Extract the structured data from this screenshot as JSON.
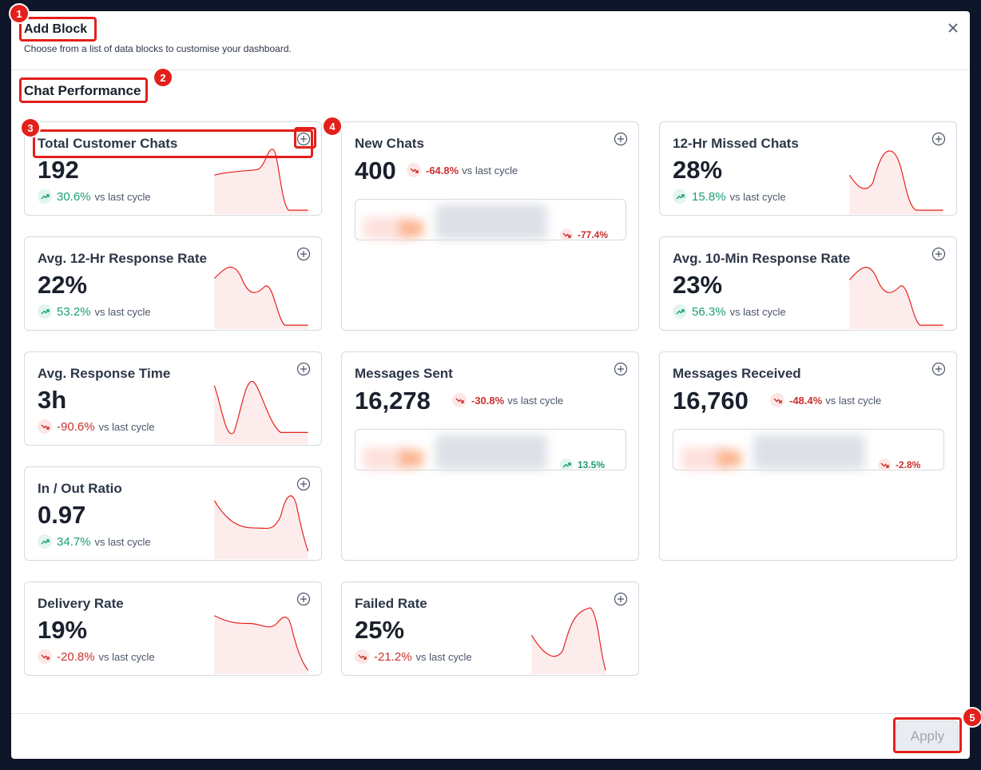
{
  "header": {
    "title": "Add Block",
    "subtitle": "Choose from a list of data blocks to customise your dashboard."
  },
  "section": {
    "title": "Chat Performance"
  },
  "comparison_label": "vs last cycle",
  "cards": [
    {
      "title": "Total Customer Chats",
      "value": "192",
      "change": "30.6%",
      "trend": "up"
    },
    {
      "title": "New Chats",
      "value": "400",
      "change": "-64.8%",
      "trend": "down",
      "inner_change": "-77.4%",
      "inner_trend": "down"
    },
    {
      "title": "12-Hr Missed Chats",
      "value": "28%",
      "change": "15.8%",
      "trend": "up"
    },
    {
      "title": "Avg. 12-Hr Response Rate",
      "value": "22%",
      "change": "53.2%",
      "trend": "up"
    },
    {
      "title": "Avg. 10-Min Response Rate",
      "value": "23%",
      "change": "56.3%",
      "trend": "up"
    },
    {
      "title": "Avg. Response Time",
      "value": "3h",
      "change": "-90.6%",
      "trend": "down"
    },
    {
      "title": "Messages Sent",
      "value": "16,278",
      "change": "-30.8%",
      "trend": "down",
      "inner_change": "13.5%",
      "inner_trend": "up"
    },
    {
      "title": "Messages Received",
      "value": "16,760",
      "change": "-48.4%",
      "trend": "down",
      "inner_change": "-2.8%",
      "inner_trend": "down"
    },
    {
      "title": "In / Out Ratio",
      "value": "0.97",
      "change": "34.7%",
      "trend": "up"
    },
    {
      "title": "Delivery Rate",
      "value": "19%",
      "change": "-20.8%",
      "trend": "down"
    },
    {
      "title": "Failed Rate",
      "value": "25%",
      "change": "-21.2%",
      "trend": "down"
    }
  ],
  "footer": {
    "button": "Apply"
  },
  "annotations": [
    "1",
    "2",
    "3",
    "4",
    "5"
  ]
}
